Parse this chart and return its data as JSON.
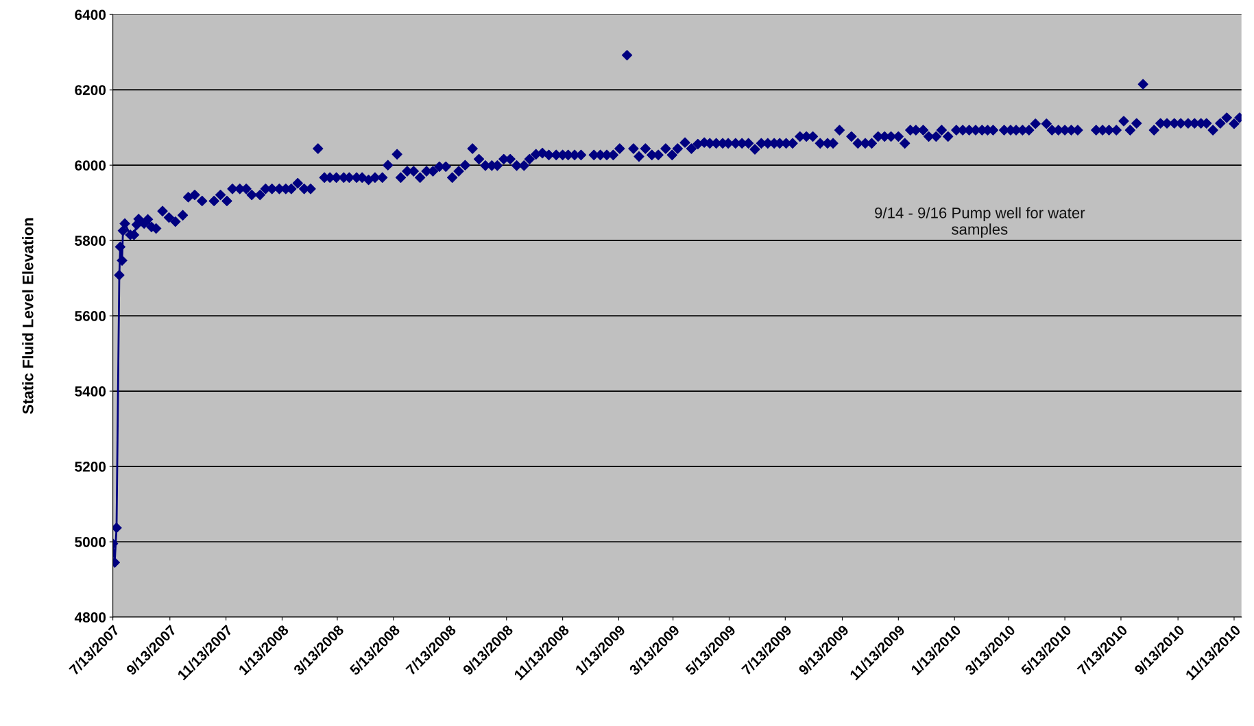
{
  "chart_data": {
    "type": "scatter",
    "ylabel": "Static Fluid Level Elevation",
    "annotations": [
      "9/14 - 9/16 Pump well for water\nsamples"
    ],
    "xlim": [
      "2007-07-13",
      "2010-11-21"
    ],
    "ylim": [
      4800,
      6400
    ],
    "yticks": [
      4800,
      5000,
      5200,
      5400,
      5600,
      5800,
      6000,
      6200,
      6400
    ],
    "xticks": [
      {
        "value": "2007-07-13",
        "label": "7/13/2007"
      },
      {
        "value": "2007-09-13",
        "label": "9/13/2007"
      },
      {
        "value": "2007-11-13",
        "label": "11/13/2007"
      },
      {
        "value": "2008-01-13",
        "label": "1/13/2008"
      },
      {
        "value": "2008-03-13",
        "label": "3/13/2008"
      },
      {
        "value": "2008-05-13",
        "label": "5/13/2008"
      },
      {
        "value": "2008-07-13",
        "label": "7/13/2008"
      },
      {
        "value": "2008-09-13",
        "label": "9/13/2008"
      },
      {
        "value": "2008-11-13",
        "label": "11/13/2008"
      },
      {
        "value": "2009-01-13",
        "label": "1/13/2009"
      },
      {
        "value": "2009-03-13",
        "label": "3/13/2009"
      },
      {
        "value": "2009-05-13",
        "label": "5/13/2009"
      },
      {
        "value": "2009-07-13",
        "label": "7/13/2009"
      },
      {
        "value": "2009-09-13",
        "label": "9/13/2009"
      },
      {
        "value": "2009-11-13",
        "label": "11/13/2009"
      },
      {
        "value": "2010-01-13",
        "label": "1/13/2010"
      },
      {
        "value": "2010-03-13",
        "label": "3/13/2010"
      },
      {
        "value": "2010-05-13",
        "label": "5/13/2010"
      },
      {
        "value": "2010-07-13",
        "label": "7/13/2010"
      },
      {
        "value": "2010-09-13",
        "label": "9/13/2010"
      },
      {
        "value": "2010-11-13",
        "label": "11/13/2010"
      }
    ],
    "grid": "y",
    "legend": false,
    "marker": "diamond",
    "series": [
      {
        "type": "line",
        "color": "#000080",
        "x": [
          "2007-07-13",
          "2007-07-15",
          "2007-07-17",
          "2007-07-20",
          "2007-07-21",
          "2007-07-23",
          "2007-07-24",
          "2007-07-26",
          "2007-08-01",
          "2007-08-05",
          "2007-08-08",
          "2007-08-10",
          "2007-08-16",
          "2007-08-20",
          "2007-08-24",
          "2007-08-29"
        ],
        "values": [
          4995,
          4945,
          5037,
          5708,
          5783,
          5747,
          5826,
          5845,
          5815,
          5815,
          5842,
          5857,
          5845,
          5856,
          5836,
          5832
        ]
      },
      {
        "color": "#000080",
        "x": [
          "2007-09-05",
          "2007-09-12",
          "2007-09-19",
          "2007-09-27",
          "2007-10-03",
          "2007-10-10",
          "2007-10-18",
          "2007-10-31",
          "2007-11-07",
          "2007-11-14",
          "2007-11-20",
          "2007-11-28",
          "2007-12-05",
          "2007-12-11",
          "2007-12-20",
          "2007-12-26",
          "2008-01-02",
          "2008-01-10",
          "2008-01-17",
          "2008-01-23",
          "2008-01-30",
          "2008-02-06",
          "2008-02-13",
          "2008-02-21",
          "2008-02-28",
          "2008-03-05",
          "2008-03-12",
          "2008-03-20",
          "2008-03-26",
          "2008-04-03",
          "2008-04-09",
          "2008-04-16",
          "2008-04-23",
          "2008-05-01",
          "2008-05-07",
          "2008-05-17",
          "2008-05-21",
          "2008-05-28",
          "2008-06-04",
          "2008-06-11",
          "2008-06-18",
          "2008-06-25",
          "2008-07-02",
          "2008-07-09",
          "2008-07-16",
          "2008-07-23",
          "2008-07-30",
          "2008-08-07",
          "2008-08-14",
          "2008-08-21",
          "2008-08-28",
          "2008-09-03",
          "2008-09-10",
          "2008-09-17",
          "2008-09-24",
          "2008-10-02",
          "2008-10-08",
          "2008-10-15",
          "2008-10-22",
          "2008-10-29",
          "2008-11-06",
          "2008-11-13",
          "2008-11-19",
          "2008-11-26",
          "2008-12-03",
          "2008-12-17",
          "2008-12-24",
          "2008-12-31",
          "2009-01-07",
          "2009-01-14",
          "2009-01-22",
          "2009-01-29",
          "2009-02-04",
          "2009-02-11",
          "2009-02-18",
          "2009-02-25",
          "2009-03-05",
          "2009-03-12",
          "2009-03-18",
          "2009-03-26",
          "2009-04-02",
          "2009-04-09",
          "2009-04-16",
          "2009-04-22",
          "2009-04-29",
          "2009-05-06",
          "2009-05-12",
          "2009-05-20",
          "2009-05-27",
          "2009-06-03",
          "2009-06-10",
          "2009-06-17",
          "2009-06-24",
          "2009-07-01",
          "2009-07-07",
          "2009-07-14",
          "2009-07-21",
          "2009-07-29",
          "2009-08-05",
          "2009-08-12",
          "2009-08-20",
          "2009-08-28",
          "2009-09-03",
          "2009-09-10",
          "2009-09-23",
          "2009-09-30",
          "2009-10-08",
          "2009-10-15",
          "2009-10-22",
          "2009-10-29",
          "2009-11-05",
          "2009-11-13",
          "2009-11-20",
          "2009-11-26",
          "2009-12-02",
          "2009-12-10",
          "2009-12-16",
          "2009-12-24",
          "2009-12-30",
          "2010-01-06",
          "2010-01-15",
          "2010-01-22",
          "2010-01-29",
          "2010-02-05",
          "2010-02-12",
          "2010-02-18",
          "2010-02-24",
          "2010-03-08",
          "2010-03-15",
          "2010-03-21",
          "2010-03-28",
          "2010-04-04",
          "2010-04-11",
          "2010-04-23",
          "2010-04-29",
          "2010-05-06",
          "2010-05-13",
          "2010-05-20",
          "2010-05-27",
          "2010-06-16",
          "2010-06-23",
          "2010-06-30",
          "2010-07-08",
          "2010-07-16",
          "2010-07-23",
          "2010-07-30",
          "2010-08-06",
          "2010-08-18",
          "2010-08-25",
          "2010-09-01",
          "2010-09-09",
          "2010-09-16",
          "2010-09-24",
          "2010-10-01",
          "2010-10-08",
          "2010-10-14",
          "2010-10-21",
          "2010-10-29",
          "2010-11-05",
          "2010-11-13",
          "2010-11-19"
        ],
        "values": [
          5878,
          5861,
          5850,
          5867,
          5915,
          5921,
          5905,
          5905,
          5921,
          5905,
          5937,
          5937,
          5937,
          5921,
          5921,
          5937,
          5937,
          5937,
          5937,
          5937,
          5952,
          5937,
          5937,
          6044,
          5967,
          5967,
          5967,
          5967,
          5967,
          5967,
          5967,
          5961,
          5967,
          5967,
          6000,
          6029,
          5967,
          5984,
          5984,
          5967,
          5984,
          5984,
          5996,
          5996,
          5967,
          5984,
          6000,
          6044,
          6016,
          5999,
          5999,
          5999,
          6016,
          6016,
          5999,
          5999,
          6016,
          6029,
          6032,
          6027,
          6027,
          6027,
          6027,
          6027,
          6027,
          6027,
          6027,
          6027,
          6027,
          6044,
          6292,
          6044,
          6023,
          6044,
          6027,
          6027,
          6044,
          6027,
          6044,
          6060,
          6044,
          6056,
          6060,
          6058,
          6058,
          6058,
          6058,
          6058,
          6058,
          6058,
          6042,
          6058,
          6058,
          6058,
          6058,
          6058,
          6058,
          6076,
          6076,
          6076,
          6058,
          6058,
          6058,
          6093,
          6076,
          6058,
          6058,
          6058,
          6076,
          6076,
          6076,
          6076,
          6058,
          6093,
          6093,
          6093,
          6076,
          6076,
          6093,
          6076,
          6093,
          6093,
          6093,
          6093,
          6093,
          6093,
          6093,
          6093,
          6093,
          6093,
          6093,
          6093,
          6110,
          6110,
          6093,
          6093,
          6093,
          6093,
          6093,
          6093,
          6093,
          6093,
          6093,
          6117,
          6093,
          6111,
          6215,
          6093,
          6111,
          6111,
          6111,
          6111,
          6111,
          6111,
          6111,
          6111,
          6093,
          6111,
          6126,
          6110,
          6126
        ]
      }
    ]
  }
}
